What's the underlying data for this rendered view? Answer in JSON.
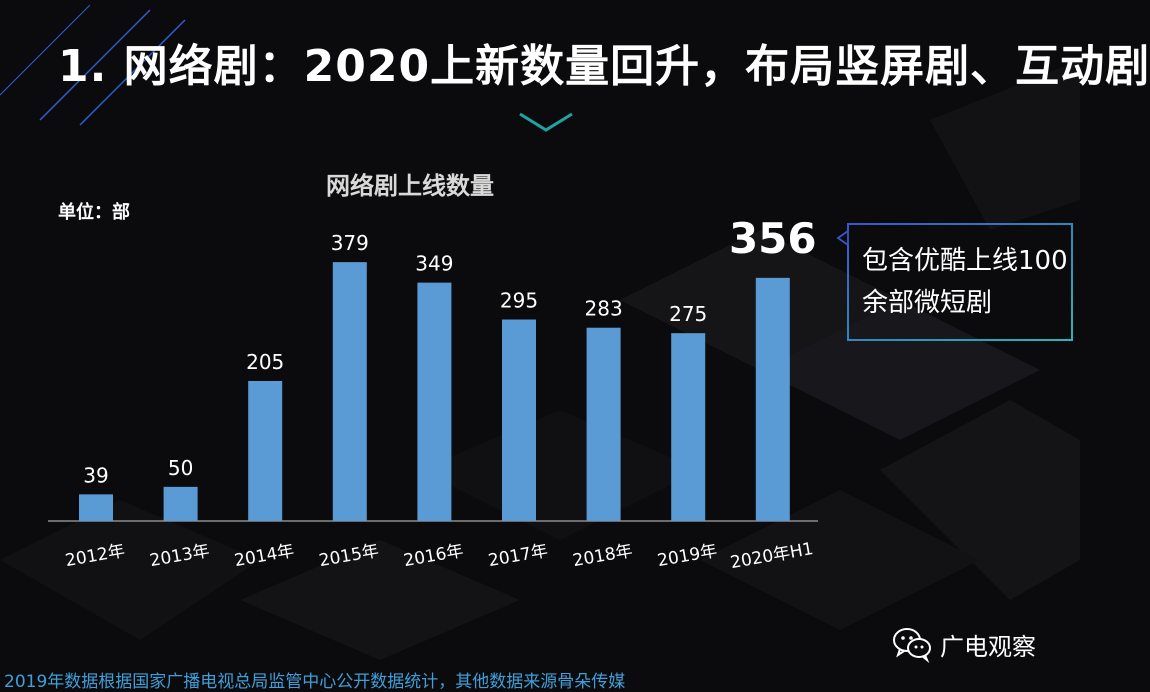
{
  "slide": {
    "title": "1. 网络剧：2020上新数量回升，布局竖屏剧、互动剧",
    "unit_label": "单位：部",
    "callout_text": "包含优酷上线100余部微短剧",
    "footer_note": "2019年数据根据国家广播电视总局监管中心公开数据统计，其他数据来源骨朵传媒",
    "account_name": "广电观察"
  },
  "icons": {
    "wechat": "wechat-icon",
    "chevron": "chevron-down-icon"
  },
  "colors": {
    "bar": "#5b9bd5",
    "accent": "#1fa3a3",
    "callout_border": "#2bb5b5",
    "footer_text": "#3e9fd9"
  },
  "chart_data": {
    "type": "bar",
    "title": "网络剧上线数量",
    "categories": [
      "2012年",
      "2013年",
      "2014年",
      "2015年",
      "2016年",
      "2017年",
      "2018年",
      "2019年",
      "2020年H1"
    ],
    "values": [
      39,
      50,
      205,
      379,
      349,
      295,
      283,
      275,
      356
    ],
    "ylim": [
      0,
      400
    ],
    "grid": false,
    "legend": "none",
    "highlight_index": 8
  }
}
